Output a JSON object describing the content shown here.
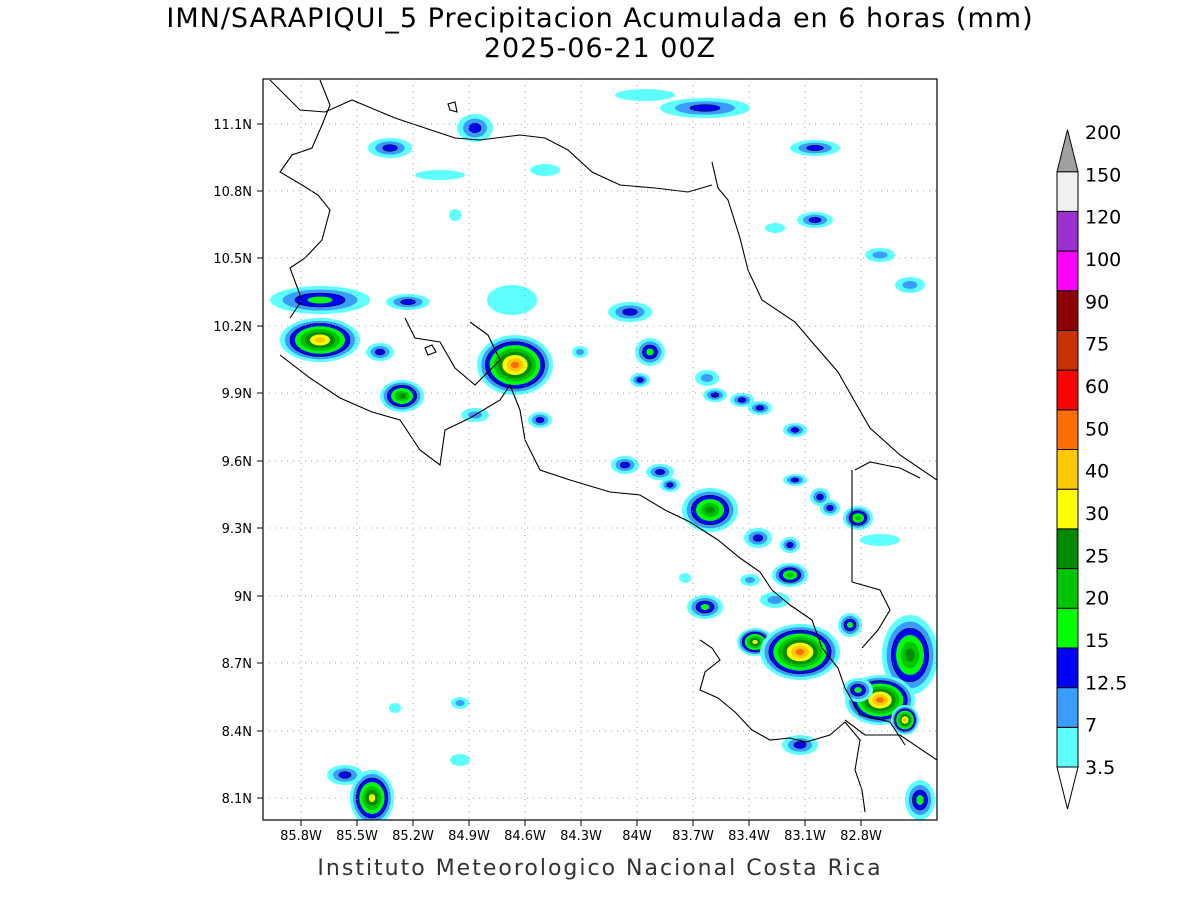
{
  "title": {
    "line1": "IMN/SARAPIQUI_5 Precipitacion Acumulada en 6 horas (mm)",
    "line2": "2025-06-21 00Z"
  },
  "footer": "Instituto Meteorologico Nacional Costa Rica",
  "map": {
    "lon_ticks": [
      "85.8W",
      "85.5W",
      "85.2W",
      "84.9W",
      "84.6W",
      "84.3W",
      "84W",
      "83.7W",
      "83.4W",
      "83.1W",
      "82.8W"
    ],
    "lat_ticks": [
      "11.1N",
      "10.8N",
      "10.5N",
      "10.2N",
      "9.9N",
      "9.6N",
      "9.3N",
      "9N",
      "8.7N",
      "8.4N",
      "8.1N"
    ],
    "grid": "dotted"
  },
  "colorbar": {
    "labels": [
      "3.5",
      "7",
      "12.5",
      "15",
      "20",
      "25",
      "30",
      "40",
      "50",
      "60",
      "75",
      "90",
      "100",
      "120",
      "150",
      "200"
    ],
    "colors": [
      "#5effff",
      "#3a9cff",
      "#0000ff",
      "#00ff00",
      "#00c400",
      "#008c00",
      "#ffff00",
      "#ffc800",
      "#ff6e00",
      "#ff0000",
      "#c83200",
      "#8c0000",
      "#ff00ff",
      "#9b30d0",
      "#f0f0f0",
      "#a0a0a0"
    ]
  },
  "precip_levels": [
    "#5effff",
    "#3a9cff",
    "#0000ff",
    "#00ff00",
    "#00c400",
    "#008c00",
    "#ffff00",
    "#ffc800",
    "#ff6e00",
    "#ff0000",
    "#8c0000"
  ]
}
